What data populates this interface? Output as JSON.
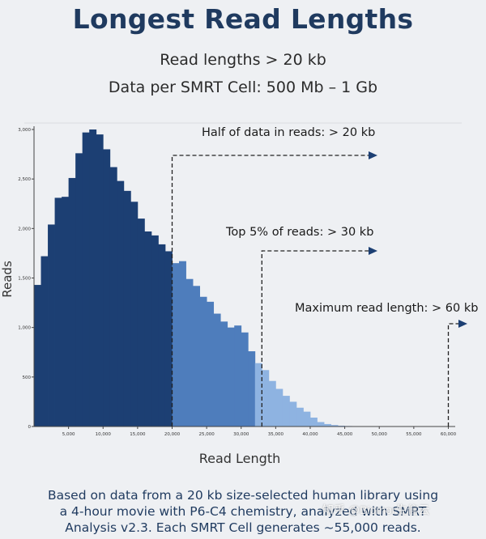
{
  "header": {
    "title": "Longest Read Lengths",
    "subtitle_1": "Read lengths > 20 kb",
    "subtitle_2": "Data per SMRT Cell: 500 Mb – 1 Gb"
  },
  "caption": {
    "line_1": "Based on data from a 20 kb size-selected human library using",
    "line_2": "a 4-hour movie with P6-C4 chemistry, analyzed with SMRT",
    "line_3": "Analysis v2.3. Each SMRT Cell generates ~55,000 reads."
  },
  "watermark": "知乎 @Biomor生信云",
  "colors": {
    "dark": "#1c3f73",
    "medium": "#4e7dbc",
    "light": "#8eb3e1",
    "title": "#1f3a5f"
  },
  "chart_data": {
    "type": "bar",
    "xlabel": "Read Length",
    "ylabel": "Reads",
    "xlim": [
      0,
      61000
    ],
    "ylim": [
      0,
      3000
    ],
    "bin_width": 1000,
    "x_ticks": [
      {
        "value": 5000,
        "label": "5,000"
      },
      {
        "value": 10000,
        "label": "10,000"
      },
      {
        "value": 15000,
        "label": "15,000"
      },
      {
        "value": 20000,
        "label": "20,000"
      },
      {
        "value": 25000,
        "label": "25,000"
      },
      {
        "value": 30000,
        "label": "30,000"
      },
      {
        "value": 35000,
        "label": "35,000"
      },
      {
        "value": 40000,
        "label": "40,000"
      },
      {
        "value": 45000,
        "label": "45,000"
      },
      {
        "value": 50000,
        "label": "50,000"
      },
      {
        "value": 55000,
        "label": "55,000"
      },
      {
        "value": 60000,
        "label": "60,000"
      }
    ],
    "y_ticks": [
      {
        "value": 0,
        "label": "0"
      },
      {
        "value": 500,
        "label": "500"
      },
      {
        "value": 1000,
        "label": "1,000"
      },
      {
        "value": 1500,
        "label": "1,500"
      },
      {
        "value": 2000,
        "label": "2,000"
      },
      {
        "value": 2500,
        "label": "2,500"
      },
      {
        "value": 3000,
        "label": "3,000"
      }
    ],
    "bins_start": [
      0,
      1000,
      2000,
      3000,
      4000,
      5000,
      6000,
      7000,
      8000,
      9000,
      10000,
      11000,
      12000,
      13000,
      14000,
      15000,
      16000,
      17000,
      18000,
      19000,
      20000,
      21000,
      22000,
      23000,
      24000,
      25000,
      26000,
      27000,
      28000,
      29000,
      30000,
      31000,
      32000,
      33000,
      34000,
      35000,
      36000,
      37000,
      38000,
      39000,
      40000,
      41000,
      42000,
      43000,
      44000,
      45000,
      46000,
      47000,
      48000,
      49000,
      50000,
      51000,
      52000,
      53000,
      54000,
      55000,
      56000,
      57000,
      58000,
      59000
    ],
    "values": [
      1430,
      1720,
      2040,
      2310,
      2320,
      2510,
      2760,
      2970,
      3000,
      2950,
      2800,
      2620,
      2480,
      2380,
      2270,
      2100,
      1970,
      1930,
      1840,
      1770,
      1650,
      1670,
      1490,
      1420,
      1310,
      1260,
      1140,
      1060,
      1000,
      1020,
      950,
      760,
      640,
      570,
      460,
      380,
      310,
      250,
      190,
      150,
      90,
      45,
      25,
      15,
      8,
      5,
      3,
      2,
      1,
      1,
      1,
      0,
      0,
      0,
      0,
      0,
      0,
      0,
      0,
      0
    ],
    "series_by_range": [
      {
        "from": 0,
        "to": 20000,
        "color": "dark"
      },
      {
        "from": 20000,
        "to": 32000,
        "color": "medium"
      },
      {
        "from": 32000,
        "to": 61000,
        "color": "light"
      }
    ],
    "annotations": [
      {
        "text": "Half of data in reads: > 20 kb",
        "x": 20000
      },
      {
        "text": "Top 5% of reads: > 30 kb",
        "x": 33000
      },
      {
        "text": "Maximum read length: > 60 kb",
        "x": 60000
      }
    ]
  }
}
